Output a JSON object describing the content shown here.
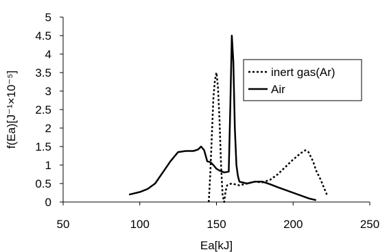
{
  "chart_data": {
    "type": "line",
    "title": "",
    "xlabel": "Ea[kJ]",
    "ylabel": "f(Ea)[J⁻¹×10⁻⁵]",
    "xlim": [
      50,
      250
    ],
    "ylim": [
      0,
      5
    ],
    "xticks": [
      50,
      100,
      150,
      200,
      250
    ],
    "yticks": [
      0,
      0.5,
      1,
      1.5,
      2,
      2.5,
      3,
      3.5,
      4,
      4.5,
      5
    ],
    "grid": false,
    "legend_position": "right",
    "series": [
      {
        "name": "inert gas(Ar)",
        "style": "dotted",
        "color": "#000000",
        "x": [
          145,
          146,
          147,
          148,
          149,
          150,
          151,
          152,
          153,
          154,
          155,
          156,
          157,
          158,
          160,
          165,
          170,
          175,
          180,
          185,
          190,
          195,
          200,
          205,
          208,
          210,
          213,
          215,
          218,
          220,
          222
        ],
        "y": [
          0,
          0.8,
          1.8,
          2.8,
          3.3,
          3.5,
          3.1,
          2.2,
          1.0,
          0.2,
          0,
          0.3,
          0.45,
          0.48,
          0.5,
          0.45,
          0.5,
          0.55,
          0.53,
          0.6,
          0.75,
          0.95,
          1.15,
          1.32,
          1.4,
          1.35,
          1.1,
          0.85,
          0.6,
          0.4,
          0.2
        ]
      },
      {
        "name": "Air",
        "style": "solid",
        "color": "#000000",
        "x": [
          93,
          100,
          105,
          110,
          115,
          120,
          125,
          130,
          135,
          138,
          140,
          142,
          144,
          146,
          148,
          150,
          152,
          155,
          158,
          159,
          160,
          161,
          162,
          163,
          164,
          165,
          170,
          175,
          180,
          185,
          190,
          200,
          210,
          215
        ],
        "y": [
          0.2,
          0.27,
          0.35,
          0.5,
          0.8,
          1.1,
          1.35,
          1.38,
          1.38,
          1.42,
          1.5,
          1.4,
          1.1,
          1.08,
          1.0,
          0.9,
          0.85,
          0.8,
          0.82,
          2.5,
          4.5,
          3.8,
          2.0,
          1.0,
          0.7,
          0.55,
          0.5,
          0.55,
          0.55,
          0.48,
          0.4,
          0.25,
          0.1,
          0.05
        ]
      }
    ]
  }
}
